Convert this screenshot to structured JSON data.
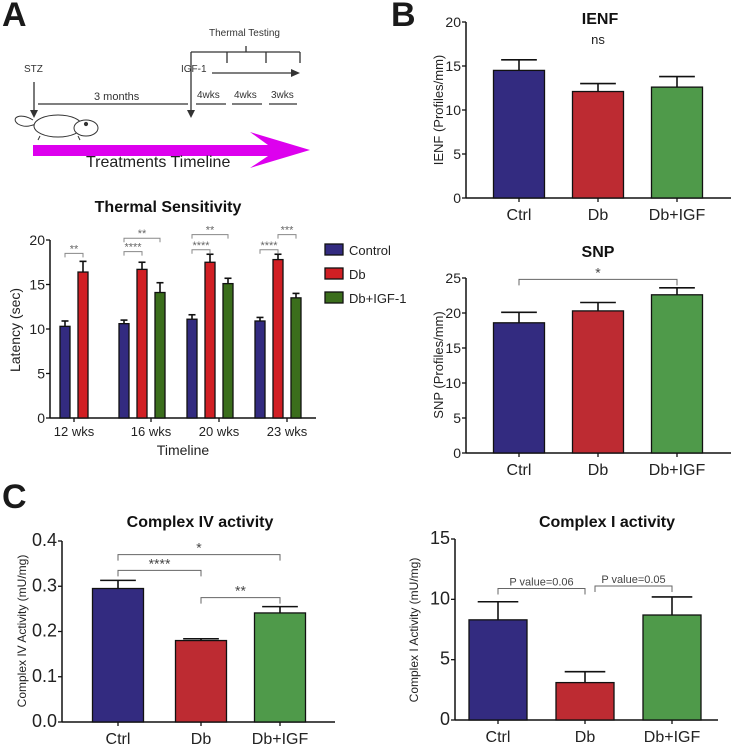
{
  "panel_labels": {
    "a": "A",
    "b": "B",
    "c": "C"
  },
  "timeline": {
    "stz": "STZ",
    "three_months": "3 months",
    "igf": "IGF-1",
    "thermal_testing": "Thermal Testing",
    "intervals": [
      "4wks",
      "4wks",
      "3wks"
    ],
    "arrow_label": "Treatments Timeline",
    "arrow_color": "#dd00ee"
  },
  "chart_data": [
    {
      "id": "thermal",
      "type": "bar",
      "title": "Thermal Sensitivity",
      "xlabel": "Timeline",
      "ylabel": "Latency (sec)",
      "ylim": [
        0,
        20
      ],
      "yticks": [
        "0",
        "5",
        "10",
        "15",
        "20"
      ],
      "categories": [
        "12 wks",
        "16 wks",
        "20 wks",
        "23 wks"
      ],
      "legend": {
        "position": "right"
      },
      "series": [
        {
          "name": "Control",
          "color": "#332b80",
          "values": [
            10.3,
            10.6,
            11.1,
            10.9
          ],
          "errors": [
            0.6,
            0.4,
            0.5,
            0.4
          ]
        },
        {
          "name": "Db",
          "color": "#d11f24",
          "values": [
            16.4,
            16.7,
            17.5,
            17.8
          ],
          "errors": [
            1.2,
            0.8,
            0.9,
            0.6
          ]
        },
        {
          "name": "Db+IGF-1",
          "color": "#3b6e1c",
          "values": [
            null,
            14.1,
            15.1,
            13.5
          ],
          "errors": [
            null,
            1.1,
            0.6,
            0.5
          ]
        }
      ],
      "significance": [
        {
          "group": 0,
          "from": 0,
          "to": 1,
          "y": 18.5,
          "label": "**"
        },
        {
          "group": 1,
          "from": 0,
          "to": 1,
          "y": 18.7,
          "label": "****"
        },
        {
          "group": 1,
          "from": 0,
          "to": 2,
          "y": 20.2,
          "label": "**"
        },
        {
          "group": 2,
          "from": 0,
          "to": 1,
          "y": 18.9,
          "label": "****"
        },
        {
          "group": 2,
          "from": 0,
          "to": 2,
          "y": 20.6,
          "label": "**"
        },
        {
          "group": 3,
          "from": 0,
          "to": 1,
          "y": 18.9,
          "label": "****"
        },
        {
          "group": 3,
          "from": 1,
          "to": 2,
          "y": 20.6,
          "label": "***"
        }
      ]
    },
    {
      "id": "ienf",
      "type": "bar",
      "title": "IENF",
      "ylabel": "IENF (Profiles/mm)",
      "ylim": [
        0,
        20
      ],
      "yticks": [
        "0",
        "5",
        "10",
        "15",
        "20"
      ],
      "categories": [
        "Ctrl",
        "Db",
        "Db+IGF"
      ],
      "colors": [
        "#332b80",
        "#bd2b32",
        "#4f9a4a"
      ],
      "values": [
        14.5,
        12.1,
        12.6
      ],
      "errors": [
        1.2,
        0.9,
        1.2
      ],
      "annotations": [
        {
          "text": "ns",
          "x": 1,
          "y": 17.5
        }
      ],
      "significance": []
    },
    {
      "id": "snp",
      "type": "bar",
      "title": "SNP",
      "ylabel": "SNP (Profiles/mm)",
      "ylim": [
        0,
        25
      ],
      "yticks": [
        "0",
        "5",
        "10",
        "15",
        "20",
        "25"
      ],
      "categories": [
        "Ctrl",
        "Db",
        "Db+IGF"
      ],
      "colors": [
        "#332b80",
        "#bd2b32",
        "#4f9a4a"
      ],
      "values": [
        18.6,
        20.3,
        22.6
      ],
      "errors": [
        1.5,
        1.2,
        1.0
      ],
      "significance": [
        {
          "from": 0,
          "to": 2,
          "y": 24.8,
          "label": "*"
        }
      ]
    },
    {
      "id": "complex4",
      "type": "bar",
      "title": "Complex IV activity",
      "ylabel": "Complex IV Activity (mU/mg)",
      "ylim": [
        0,
        0.4
      ],
      "yticks": [
        "0.0",
        "0.1",
        "0.2",
        "0.3",
        "0.4"
      ],
      "categories": [
        "Ctrl",
        "Db",
        "Db+IGF"
      ],
      "colors": [
        "#332b80",
        "#bd2b32",
        "#4f9a4a"
      ],
      "values": [
        0.295,
        0.18,
        0.241
      ],
      "errors": [
        0.018,
        0.004,
        0.014
      ],
      "significance": [
        {
          "from": 0,
          "to": 2,
          "y": 0.37,
          "label": "*"
        },
        {
          "from": 0,
          "to": 1,
          "y": 0.335,
          "label": "****"
        },
        {
          "from": 1,
          "to": 2,
          "y": 0.275,
          "label": "**"
        }
      ]
    },
    {
      "id": "complex1",
      "type": "bar",
      "title": "Complex I activity",
      "ylabel": "Complex I Activity (mU/mg)",
      "ylim": [
        0,
        15
      ],
      "yticks": [
        "0",
        "5",
        "10",
        "15"
      ],
      "categories": [
        "Ctrl",
        "Db",
        "Db+IGF"
      ],
      "colors": [
        "#332b80",
        "#bd2b32",
        "#4f9a4a"
      ],
      "values": [
        8.3,
        3.1,
        8.7
      ],
      "errors": [
        1.5,
        0.9,
        1.5
      ],
      "significance": [
        {
          "from": 0,
          "to": 1,
          "y": 10.9,
          "label": "P value=0.06",
          "x_end_offset": 0
        },
        {
          "from": 1,
          "to": 2,
          "y": 11.1,
          "label": "P value=0.05"
        }
      ]
    }
  ]
}
